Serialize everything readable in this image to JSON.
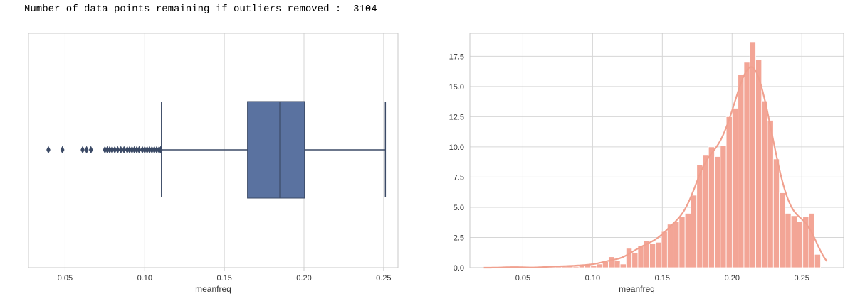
{
  "output_line": "Number of data points remaining if outliers removed :  3104",
  "colors": {
    "box_fill": "#5a72a0",
    "box_edge": "#3b4a66",
    "hist_fill": "#f3a596",
    "hist_edge": "#ffffff",
    "kde_line": "#f0a08e",
    "grid": "#d6d6d6",
    "frame": "#c8c8c8"
  },
  "chart_data": [
    {
      "type": "boxplot",
      "xlabel": "meanfreq",
      "xlim": [
        0.027,
        0.259
      ],
      "xticks": [
        0.05,
        0.1,
        0.15,
        0.2,
        0.25
      ],
      "xtick_labels": [
        "0.05",
        "0.10",
        "0.15",
        "0.20",
        "0.25"
      ],
      "grid": true,
      "box": {
        "whisker_low": 0.1105,
        "q1": 0.1645,
        "median": 0.1848,
        "q3": 0.2003,
        "whisker_high": 0.2511
      },
      "outliers": [
        0.0395,
        0.0483,
        0.061,
        0.0635,
        0.0662,
        0.075,
        0.0765,
        0.078,
        0.0795,
        0.0812,
        0.083,
        0.085,
        0.087,
        0.089,
        0.0905,
        0.092,
        0.0935,
        0.095,
        0.0965,
        0.0985,
        0.1,
        0.1015,
        0.103,
        0.1045,
        0.106,
        0.1075,
        0.109,
        0.11
      ]
    },
    {
      "type": "histogram",
      "xlabel": "meanfreq",
      "xlim": [
        0.012,
        0.28
      ],
      "ylim": [
        0,
        19.4
      ],
      "xticks": [
        0.05,
        0.1,
        0.15,
        0.2,
        0.25
      ],
      "xtick_labels": [
        "0.05",
        "0.10",
        "0.15",
        "0.20",
        "0.25"
      ],
      "yticks": [
        0,
        2.5,
        5.0,
        7.5,
        10.0,
        12.5,
        15.0,
        17.5
      ],
      "ytick_labels": [
        "0.0",
        "2.5",
        "5.0",
        "7.5",
        "10.0",
        "12.5",
        "15.0",
        "17.5"
      ],
      "grid": true,
      "bins": {
        "start": 0.0395,
        "width": 0.004225
      },
      "counts": [
        0.1,
        0.1,
        0.0,
        0.0,
        0.0,
        0.0,
        0.1,
        0.1,
        0.1,
        0.1,
        0.2,
        0.1,
        0.2,
        0.3,
        0.2,
        0.3,
        0.5,
        0.9,
        0.6,
        0.3,
        1.6,
        1.2,
        1.8,
        2.2,
        2.0,
        2.1,
        3.0,
        3.6,
        3.8,
        4.2,
        4.5,
        6.0,
        8.5,
        9.3,
        10.0,
        9.2,
        10.1,
        12.5,
        13.2,
        16.0,
        17.0,
        18.7,
        17.2,
        13.8,
        12.2,
        9.0,
        6.2,
        4.5,
        4.3,
        3.8,
        4.2,
        4.5,
        1.1
      ]
    }
  ]
}
